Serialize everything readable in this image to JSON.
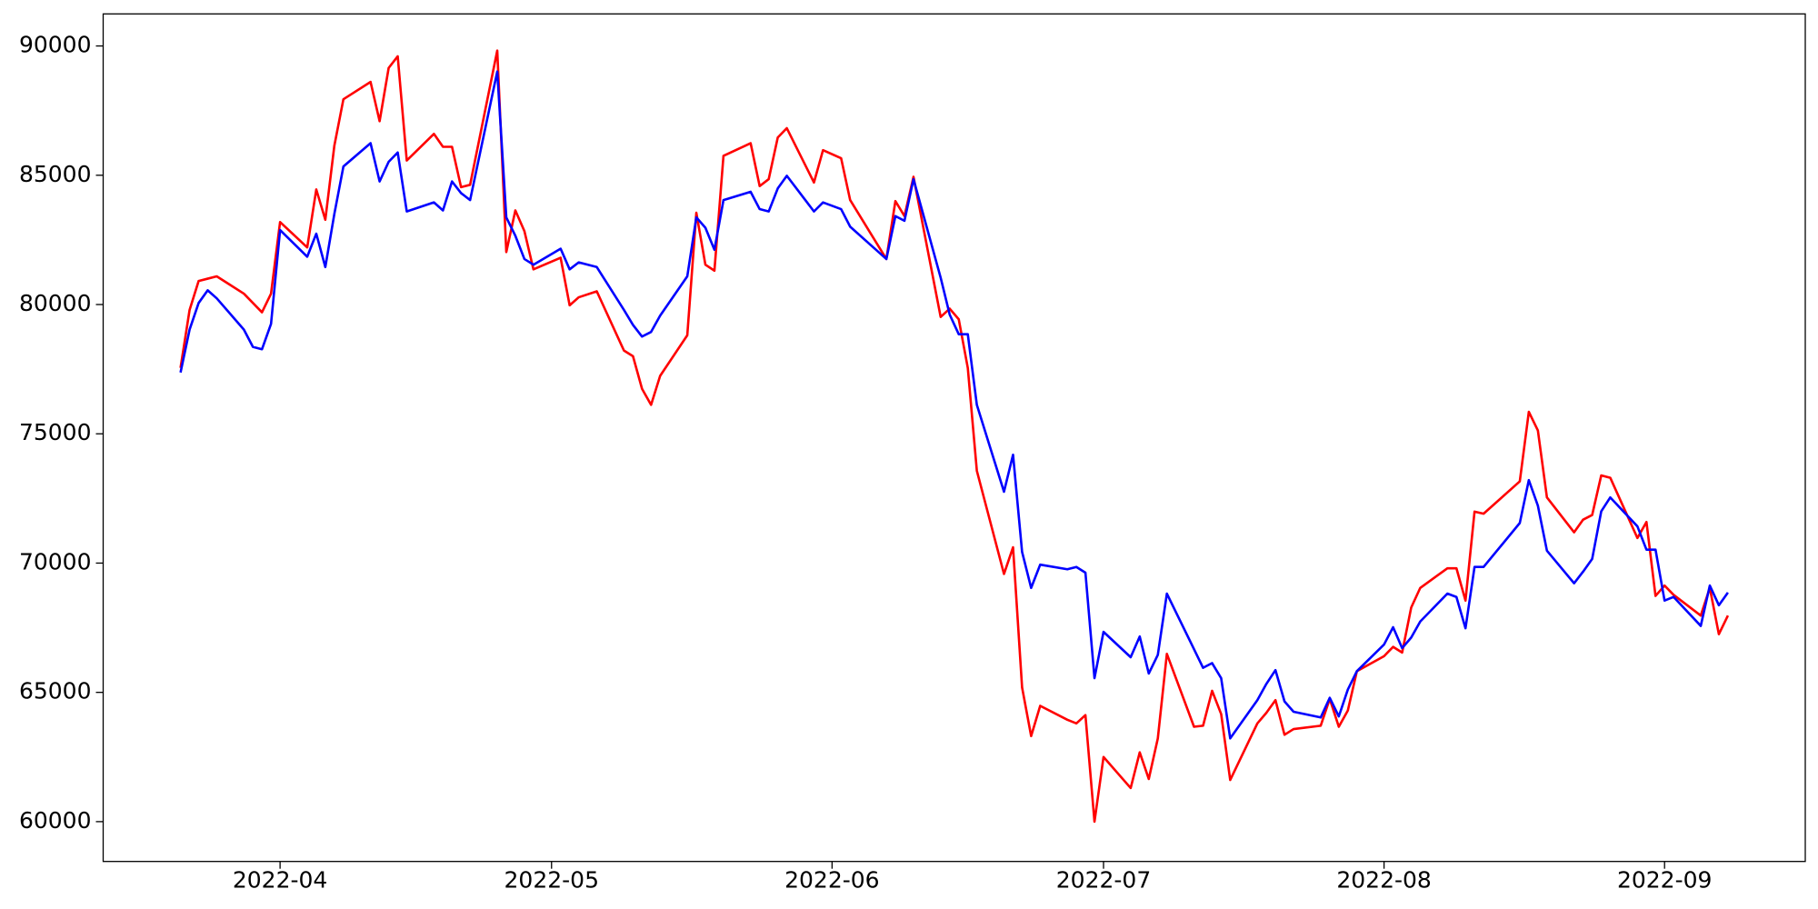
{
  "chart_data": {
    "type": "line",
    "x": [
      80,
      81,
      82,
      83,
      84,
      87,
      88,
      89,
      90,
      91,
      94,
      95,
      96,
      97,
      98,
      101,
      102,
      103,
      104,
      105,
      108,
      109,
      110,
      111,
      112,
      115,
      116,
      117,
      118,
      119,
      122,
      123,
      124,
      126,
      129,
      130,
      131,
      132,
      133,
      136,
      137,
      138,
      139,
      140,
      143,
      144,
      145,
      146,
      147,
      150,
      151,
      153,
      154,
      158,
      159,
      160,
      161,
      164,
      165,
      166,
      167,
      168,
      171,
      172,
      173,
      174,
      175,
      178,
      179,
      180,
      181,
      182,
      185,
      186,
      187,
      188,
      189,
      192,
      193,
      194,
      195,
      196,
      199,
      200,
      201,
      202,
      203,
      206,
      207,
      208,
      209,
      210,
      213,
      214,
      215,
      216,
      217,
      220,
      221,
      222,
      223,
      224,
      228,
      229,
      230,
      231,
      234,
      235,
      236,
      237,
      238,
      241,
      242,
      243,
      244,
      245,
      248,
      249,
      250,
      251
    ],
    "series": [
      {
        "color": "#ff0000",
        "values": [
          77550,
          79790,
          80910,
          81000,
          81090,
          80420,
          80060,
          79700,
          80420,
          83190,
          82210,
          84450,
          83280,
          86150,
          87940,
          88610,
          87090,
          89150,
          89600,
          85570,
          86600,
          86100,
          86100,
          84540,
          84630,
          89820,
          82030,
          83640,
          82840,
          81360,
          81810,
          79970,
          80280,
          80510,
          78220,
          78000,
          76740,
          76120,
          77240,
          78810,
          83550,
          81540,
          81310,
          85750,
          86240,
          84580,
          84850,
          86460,
          86820,
          84720,
          85970,
          85660,
          84040,
          81760,
          84000,
          83420,
          84940,
          79520,
          79840,
          79430,
          77550,
          73570,
          69580,
          70610,
          65190,
          63310,
          64480,
          63940,
          63800,
          64120,
          60000,
          62500,
          61300,
          62680,
          61650,
          63220,
          66490,
          63670,
          63710,
          65060,
          64160,
          61610,
          63800,
          64210,
          64700,
          63360,
          63580,
          63710,
          64750,
          63670,
          64300,
          65820,
          66400,
          66760,
          66540,
          68280,
          69040,
          69800,
          69800,
          68550,
          71990,
          71910,
          73160,
          75850,
          75130,
          72540,
          71190,
          71680,
          71860,
          73390,
          73300,
          70970,
          71590,
          68730,
          69130,
          68770,
          67970,
          69040,
          67250,
          67970
        ]
      },
      {
        "color": "#0000ff",
        "values": [
          77370,
          79030,
          80060,
          80550,
          80240,
          79030,
          78360,
          78270,
          79250,
          82880,
          81850,
          82740,
          81450,
          83510,
          85340,
          86240,
          84760,
          85520,
          85880,
          83600,
          83950,
          83640,
          84760,
          84310,
          84040,
          89010,
          83370,
          82660,
          81760,
          81540,
          82160,
          81360,
          81630,
          81450,
          79790,
          79210,
          78760,
          78940,
          79570,
          81090,
          83370,
          82970,
          82120,
          84040,
          84360,
          83690,
          83600,
          84490,
          84980,
          83600,
          83950,
          83690,
          83010,
          81760,
          83420,
          83240,
          84850,
          81040,
          79610,
          78850,
          78850,
          76120,
          72760,
          74190,
          70430,
          69040,
          69940,
          69760,
          69850,
          69630,
          65550,
          67340,
          66360,
          67160,
          65730,
          66450,
          68820,
          66670,
          65950,
          66130,
          65550,
          63220,
          64700,
          65330,
          65860,
          64650,
          64250,
          64030,
          64790,
          64070,
          65110,
          65820,
          66850,
          67520,
          66710,
          67120,
          67740,
          68820,
          68690,
          67480,
          69850,
          69850,
          71550,
          73210,
          72220,
          70480,
          69220,
          69670,
          70160,
          72000,
          72540,
          71420,
          70520,
          70520,
          68550,
          68690,
          67570,
          69130,
          68370,
          68860
        ]
      }
    ],
    "xlim": [
      71.45,
      259.55
    ],
    "xticks": [
      {
        "value": 91,
        "label": "2022-04"
      },
      {
        "value": 121,
        "label": "2022-05"
      },
      {
        "value": 152,
        "label": "2022-06"
      },
      {
        "value": 182,
        "label": "2022-07"
      },
      {
        "value": 213,
        "label": "2022-08"
      },
      {
        "value": 244,
        "label": "2022-09"
      }
    ],
    "ylim": [
      58460,
      91240
    ],
    "yticks": [
      60000,
      65000,
      70000,
      75000,
      80000,
      85000,
      90000
    ]
  }
}
